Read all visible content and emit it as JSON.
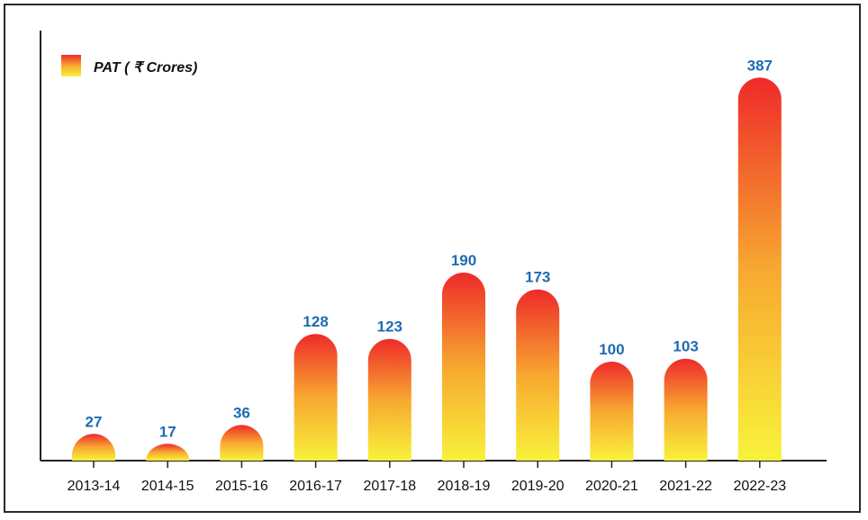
{
  "chart_data": {
    "type": "bar",
    "categories": [
      "2013-14",
      "2014-15",
      "2015-16",
      "2016-17",
      "2017-18",
      "2018-19",
      "2019-20",
      "2020-21",
      "2021-22",
      "2022-23"
    ],
    "series": [
      {
        "name": "PAT ( ₹  Crores)",
        "values": [
          27,
          17,
          36,
          128,
          123,
          190,
          173,
          100,
          103,
          387
        ]
      }
    ],
    "title": "",
    "xlabel": "",
    "ylabel": "",
    "ylim": [
      0,
      400
    ],
    "grid": false,
    "legend_position": "top-left",
    "colors": {
      "bar_top": "#ee2a2a",
      "bar_mid": "#f7a830",
      "bar_bottom": "#f8f23a",
      "value_label": "#1d6bb3",
      "axis": "#222222"
    }
  }
}
